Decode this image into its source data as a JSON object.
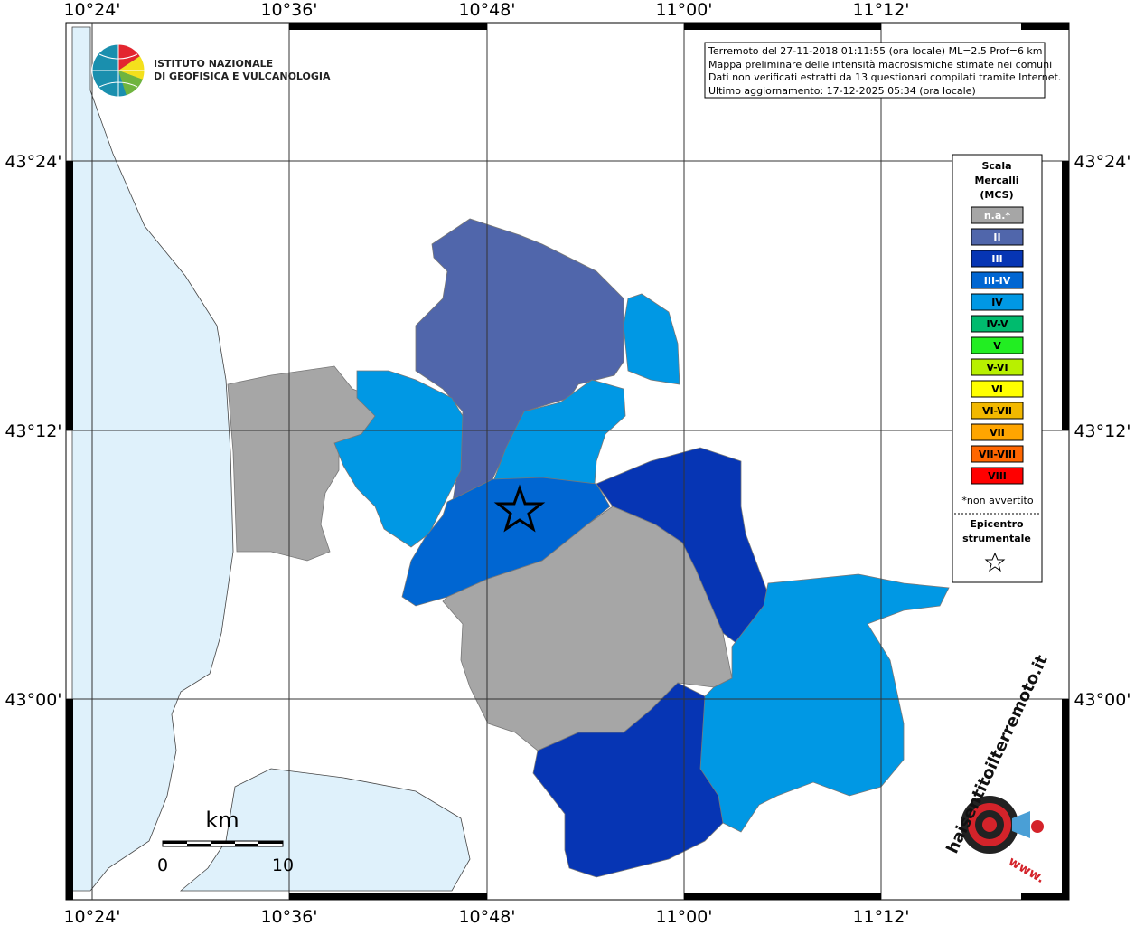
{
  "map": {
    "lon_labels": [
      "10°24'",
      "10°36'",
      "10°48'",
      "11°00'",
      "11°12'"
    ],
    "lat_labels": [
      "43°24'",
      "43°12'",
      "43°00'"
    ]
  },
  "info_box": {
    "lines": [
      "Terremoto del 27-11-2018 01:11:55 (ora locale) ML=2.5 Prof=6 km",
      "Mappa preliminare delle intensità macrosismiche stimate nei comuni",
      "Dati non verificati estratti da 13 questionari compilati tramite Internet.",
      "Ultimo aggiornamento: 17-12-2025 05:34 (ora locale)"
    ]
  },
  "logos": {
    "ingv": [
      "ISTITUTO NAZIONALE",
      "DI GEOFISICA E VULCANOLOGIA"
    ],
    "haisentito": {
      "site": "haisentitoilterremoto.it",
      "www": "www."
    }
  },
  "legend": {
    "title": [
      "Scala",
      "Mercalli",
      "(MCS)"
    ],
    "items": [
      {
        "label": "n.a.*",
        "color": "#a6a6a6"
      },
      {
        "label": "II",
        "color": "#5066ab"
      },
      {
        "label": "III",
        "color": "#0635b4"
      },
      {
        "label": "III-IV",
        "color": "#0066d2"
      },
      {
        "label": "IV",
        "color": "#0098e4"
      },
      {
        "label": "IV-V",
        "color": "#00bb6e"
      },
      {
        "label": "V",
        "color": "#22ee22"
      },
      {
        "label": "V-VI",
        "color": "#b8f000"
      },
      {
        "label": "VI",
        "color": "#ffff00"
      },
      {
        "label": "VI-VII",
        "color": "#f2b800"
      },
      {
        "label": "VII",
        "color": "#ffa500"
      },
      {
        "label": "VII-VIII",
        "color": "#ff6600"
      },
      {
        "label": "VIII",
        "color": "#ff0000"
      }
    ],
    "note": "*non avvertito",
    "epicenter": [
      "Epicentro",
      "strumentale"
    ]
  },
  "scale_bar": {
    "unit": "km",
    "ticks": [
      "0",
      "10"
    ]
  }
}
